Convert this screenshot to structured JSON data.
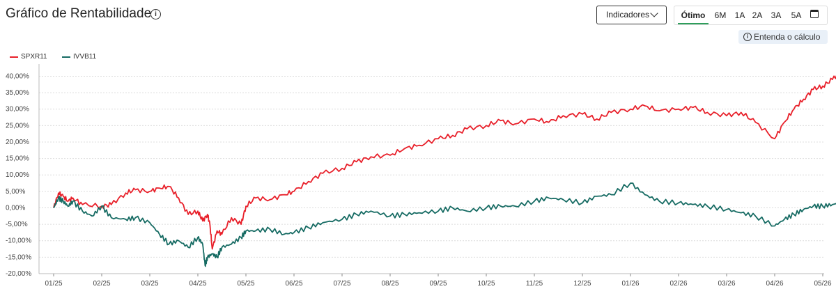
{
  "header": {
    "title": "Gráfico de Rentabilidade",
    "info_icon": "info-circle-icon",
    "indicators_label": "Indicadores",
    "periods": [
      "Ótimo",
      "6M",
      "1A",
      "2A",
      "3A",
      "5A"
    ],
    "active_period": "Ótimo",
    "calendar_icon": "calendar-icon",
    "calc_link": "Entenda o cálculo"
  },
  "colors": {
    "accent_active": "#2e9e5b",
    "spxr11": "#e8202a",
    "ivvb11": "#166b63"
  },
  "chart_data": {
    "type": "line",
    "xlabel": "",
    "ylabel": "",
    "ylim": [
      -20,
      42
    ],
    "yticks": [
      "40,00%",
      "35,00%",
      "30,00%",
      "25,00%",
      "20,00%",
      "15,00%",
      "10,00%",
      "5,00%",
      "0,00%",
      "-5,00%",
      "-10,00%",
      "-15,00%",
      "-20,00%"
    ],
    "ytick_values": [
      40,
      35,
      30,
      25,
      20,
      15,
      10,
      5,
      0,
      -5,
      -10,
      -15,
      -20
    ],
    "categories": [
      "01/25",
      "02/25",
      "03/25",
      "04/25",
      "05/25",
      "06/25",
      "07/25",
      "08/25",
      "09/25",
      "10/25",
      "11/25",
      "12/25",
      "01/26",
      "02/26",
      "03/26",
      "04/26",
      "05/26"
    ],
    "grid": true,
    "legend": "top-left",
    "series": [
      {
        "name": "SPXR11",
        "color": "#e8202a",
        "x": [
          0,
          0.1,
          0.2,
          0.3,
          0.4,
          0.6,
          1.0,
          1.2,
          1.5,
          1.7,
          2.0,
          2.2,
          2.4,
          2.6,
          2.8,
          3.0,
          3.1,
          3.2,
          3.25,
          3.3,
          3.4,
          3.5,
          3.7,
          3.9,
          4.0,
          4.2,
          4.5,
          4.8,
          5.0,
          5.3,
          5.6,
          6.0,
          6.3,
          6.6,
          7.0,
          7.3,
          7.6,
          8.0,
          8.3,
          8.6,
          9.0,
          9.3,
          9.6,
          10.0,
          10.3,
          10.6,
          11.0,
          11.3,
          11.6,
          12.0,
          12.3,
          12.6,
          13.0,
          13.3,
          13.6,
          14.0,
          14.3,
          14.6,
          15.0,
          15.2,
          15.4,
          15.6,
          15.8,
          16.0,
          16.2,
          16.4
        ],
        "values": [
          0,
          4.5,
          3.5,
          2.0,
          3.0,
          1.0,
          0.5,
          1.0,
          4.5,
          5.5,
          5.0,
          6.0,
          6.5,
          3.0,
          -2.0,
          -1.0,
          -4.0,
          -2.0,
          -5.0,
          -12.5,
          -7.0,
          -8.0,
          -3.0,
          -5.0,
          0.5,
          3.0,
          2.5,
          4.0,
          5.0,
          8.0,
          10.5,
          12.0,
          14.0,
          15.5,
          16.0,
          18.0,
          19.0,
          21.0,
          22.0,
          24.0,
          25.0,
          26.5,
          25.5,
          27.0,
          26.0,
          28.0,
          28.5,
          27.0,
          29.0,
          30.0,
          31.0,
          29.5,
          30.0,
          30.5,
          29.0,
          28.0,
          29.0,
          26.0,
          21.0,
          26.0,
          30.0,
          33.0,
          36.0,
          37.0,
          39.0,
          42.0
        ]
      },
      {
        "name": "IVVB11",
        "color": "#166b63",
        "x": [
          0,
          0.1,
          0.2,
          0.3,
          0.4,
          0.6,
          0.8,
          1.0,
          1.2,
          1.5,
          1.7,
          2.0,
          2.2,
          2.4,
          2.6,
          2.8,
          3.0,
          3.1,
          3.15,
          3.2,
          3.3,
          3.4,
          3.5,
          3.7,
          3.9,
          4.0,
          4.2,
          4.5,
          4.8,
          5.0,
          5.3,
          5.6,
          6.0,
          6.3,
          6.6,
          7.0,
          7.3,
          7.6,
          8.0,
          8.3,
          8.6,
          9.0,
          9.3,
          9.6,
          10.0,
          10.3,
          10.6,
          11.0,
          11.3,
          11.6,
          12.0,
          12.3,
          12.6,
          13.0,
          13.3,
          13.6,
          14.0,
          14.3,
          14.6,
          15.0,
          15.2,
          15.4,
          15.6,
          15.8,
          16.0,
          16.2,
          16.4
        ],
        "values": [
          0,
          3.0,
          2.0,
          0.5,
          2.0,
          -1.0,
          -2.5,
          0.5,
          -3.0,
          -3.5,
          -3.0,
          -4.5,
          -8.0,
          -11.0,
          -10.0,
          -12.0,
          -9.0,
          -11.0,
          -17.5,
          -15.0,
          -14.0,
          -15.0,
          -12.0,
          -11.0,
          -9.0,
          -7.0,
          -7.0,
          -6.5,
          -8.0,
          -7.5,
          -6.0,
          -4.5,
          -3.5,
          -2.0,
          -1.0,
          -2.5,
          -2.0,
          -1.5,
          -1.0,
          0.0,
          -1.0,
          0.0,
          0.5,
          0.5,
          2.0,
          3.0,
          2.5,
          1.5,
          3.5,
          4.0,
          7.5,
          4.0,
          2.0,
          1.5,
          1.0,
          0.5,
          -0.5,
          -1.5,
          -2.5,
          -5.5,
          -3.5,
          -2.0,
          -0.5,
          0.5,
          0.5,
          1.0,
          1.5
        ]
      }
    ]
  }
}
